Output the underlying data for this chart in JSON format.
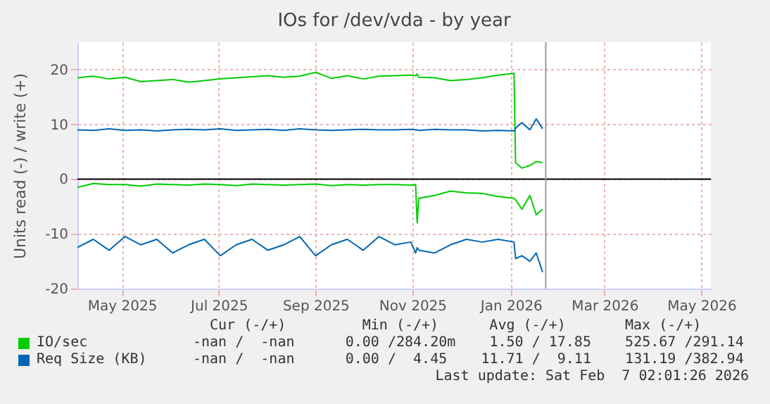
{
  "chart_data": {
    "type": "line",
    "title": "IOs for /dev/vda - by year",
    "ylabel": "Units read (-) / write (+)",
    "xlim": [
      "2025-04-18",
      "2026-05-22"
    ],
    "ylim": [
      -20,
      25
    ],
    "yticks": [
      -20,
      -10,
      0,
      10,
      20
    ],
    "xticks": [
      {
        "value": "2025-05-16",
        "label": "May 2025"
      },
      {
        "value": "2025-07-16",
        "label": "Jul 2025"
      },
      {
        "value": "2025-09-15",
        "label": "Sep 2025"
      },
      {
        "value": "2025-11-15",
        "label": "Nov 2025"
      },
      {
        "value": "2026-01-16",
        "label": "Jan 2026"
      },
      {
        "value": "2026-03-16",
        "label": "Mar 2026"
      },
      {
        "value": "2026-05-16",
        "label": "May 2026"
      }
    ],
    "grid": true,
    "legend": "bottom",
    "x": [
      "2025-04-18",
      "2025-04-28",
      "2025-05-08",
      "2025-05-18",
      "2025-05-28",
      "2025-06-07",
      "2025-06-17",
      "2025-06-27",
      "2025-07-07",
      "2025-07-17",
      "2025-07-27",
      "2025-08-06",
      "2025-08-16",
      "2025-08-26",
      "2025-09-05",
      "2025-09-15",
      "2025-09-25",
      "2025-10-05",
      "2025-10-15",
      "2025-10-25",
      "2025-11-04",
      "2025-11-14",
      "2025-11-17",
      "2025-11-18",
      "2025-11-19",
      "2025-11-29",
      "2025-12-09",
      "2025-12-19",
      "2025-12-29",
      "2026-01-08",
      "2026-01-18",
      "2026-01-19",
      "2026-01-23",
      "2026-01-28",
      "2026-02-01",
      "2026-02-05"
    ],
    "series": [
      {
        "name": "IO/sec",
        "color": "#00cc00",
        "values": [
          18.5,
          18.8,
          18.3,
          18.6,
          17.8,
          18.0,
          18.2,
          17.7,
          18.0,
          18.3,
          18.5,
          18.7,
          18.9,
          18.6,
          18.8,
          19.5,
          18.4,
          18.9,
          18.3,
          18.8,
          18.9,
          19.0,
          18.9,
          19.2,
          18.6,
          18.5,
          18.0,
          18.2,
          18.5,
          19.0,
          19.3,
          3.0,
          2.0,
          2.5,
          3.2,
          3.0
        ]
      },
      {
        "name": "Req Size (KB)",
        "color": "#0066b3",
        "values": [
          9.0,
          8.9,
          9.2,
          8.9,
          9.0,
          8.8,
          9.0,
          9.1,
          9.0,
          9.2,
          8.9,
          9.0,
          9.1,
          8.9,
          9.2,
          9.0,
          8.9,
          9.0,
          9.1,
          9.0,
          9.0,
          9.1,
          9.0,
          9.0,
          8.9,
          9.1,
          9.0,
          9.0,
          8.8,
          8.9,
          8.8,
          9.3,
          10.3,
          9.0,
          11.0,
          9.2
        ]
      },
      {
        "color": "#00cc00",
        "values": [
          -1.5,
          -0.8,
          -1.0,
          -1.0,
          -1.3,
          -0.9,
          -1.0,
          -1.1,
          -0.9,
          -1.0,
          -1.2,
          -0.9,
          -1.0,
          -1.1,
          -1.0,
          -0.9,
          -1.2,
          -1.0,
          -1.1,
          -1.0,
          -1.0,
          -1.1,
          -1.0,
          -8.0,
          -3.5,
          -3.0,
          -2.2,
          -2.5,
          -2.6,
          -3.2,
          -3.5,
          -3.8,
          -5.5,
          -3.0,
          -6.5,
          -5.5
        ]
      },
      {
        "color": "#0066b3",
        "values": [
          -12.5,
          -11,
          -13,
          -10.5,
          -12,
          -11,
          -13.5,
          -12,
          -11,
          -14,
          -12,
          -11,
          -13,
          -12,
          -10.5,
          -14,
          -12,
          -11,
          -13,
          -10.5,
          -12,
          -11.5,
          -13.5,
          -12.5,
          -13,
          -13.5,
          -12,
          -11,
          -11.5,
          -11,
          -11.5,
          -14.5,
          -14,
          -15,
          -13.5,
          -17
        ]
      }
    ],
    "ref_lines": [
      {
        "axis": "y",
        "value": 0,
        "color": "#000000"
      },
      {
        "axis": "x",
        "value": "2026-02-07",
        "color": "#999999"
      }
    ],
    "annotations": [
      "Cur (-/+)         Min (-/+)      Avg (-/+)       Max (-/+)",
      "-nan /  -nan      0.00 /284.20m    1.50 / 17.85    525.67 /291.14",
      "-nan /  -nan      0.00 /  4.45    11.71 /  9.11    131.19 /382.94",
      "Last update: Sat Feb  7 02:01:26 2026"
    ]
  }
}
